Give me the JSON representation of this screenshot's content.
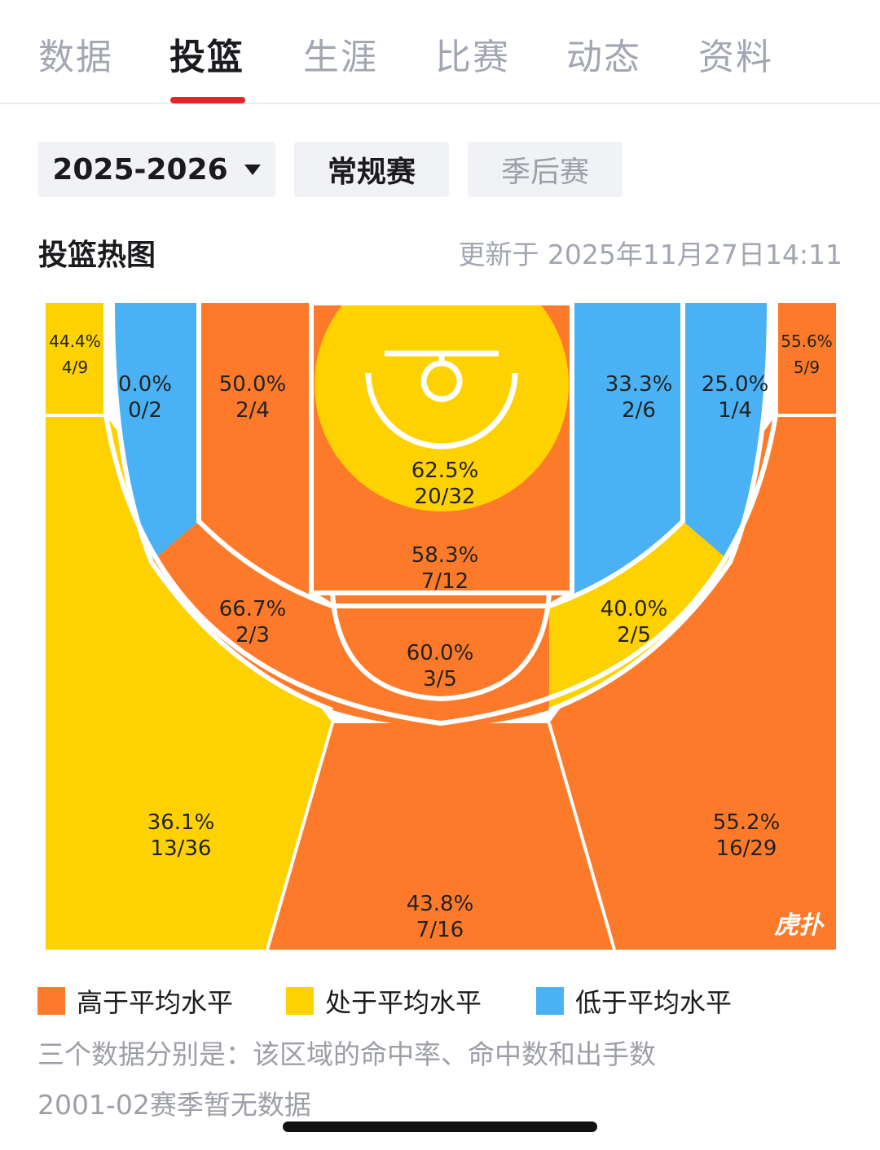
{
  "tabs": [
    "数据",
    "投篮",
    "生涯",
    "比赛",
    "动态",
    "资料"
  ],
  "filters": {
    "season": "2025-2026",
    "regular": "常规赛",
    "playoffs": "季后赛"
  },
  "section": {
    "title": "投篮热图",
    "updated": "更新于 2025年11月27日14:11"
  },
  "colors": {
    "above": "#FD7A2B",
    "average": "#FED201",
    "below": "#4AB2F4",
    "accent": "#E0262D"
  },
  "zones": {
    "left_corner_three": {
      "pct": "44.4%",
      "frac": "4/9"
    },
    "left_wing_long_two": {
      "pct": "0.0%",
      "frac": "0/2"
    },
    "left_mid_two": {
      "pct": "50.0%",
      "frac": "2/4"
    },
    "restricted_area": {
      "pct": "62.5%",
      "frac": "20/32"
    },
    "right_mid_two": {
      "pct": "33.3%",
      "frac": "2/6"
    },
    "right_wing_long_two": {
      "pct": "25.0%",
      "frac": "1/4"
    },
    "right_corner_three": {
      "pct": "55.6%",
      "frac": "5/9"
    },
    "paint_non_ra": {
      "pct": "58.3%",
      "frac": "7/12"
    },
    "left_elbow_long_two": {
      "pct": "66.7%",
      "frac": "2/3"
    },
    "top_key_long_two": {
      "pct": "60.0%",
      "frac": "3/5"
    },
    "right_elbow_long_two": {
      "pct": "40.0%",
      "frac": "2/5"
    },
    "left_wing_three": {
      "pct": "36.1%",
      "frac": "13/36"
    },
    "right_wing_three": {
      "pct": "55.2%",
      "frac": "16/29"
    },
    "top_key_three": {
      "pct": "43.8%",
      "frac": "7/16"
    }
  },
  "watermark": "虎扑",
  "legend": {
    "above": "高于平均水平",
    "average": "处于平均水平",
    "below": "低于平均水平"
  },
  "note": "三个数据分别是：该区域的命中率、命中数和出手数",
  "no_data": "2001-02赛季暂无数据"
}
